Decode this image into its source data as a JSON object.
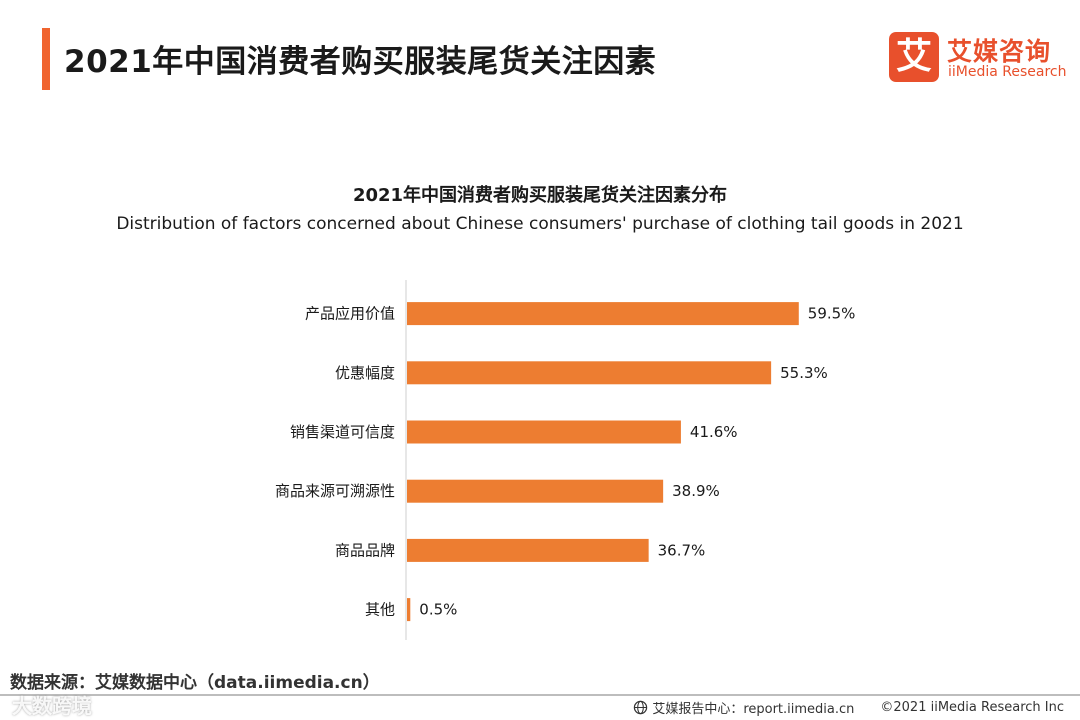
{
  "header": {
    "title": "2021年中国消费者购买服装尾货关注因素",
    "logo_cn": "艾媒咨询",
    "logo_en": "iiMedia Research",
    "logo_mark": "艾"
  },
  "chart_data": {
    "type": "bar",
    "orientation": "horizontal",
    "title": "2021年中国消费者购买服装尾货关注因素分布",
    "subtitle": "Distribution of factors concerned about Chinese consumers' purchase of clothing tail goods in 2021",
    "categories": [
      "产品应用价值",
      "优惠幅度",
      "销售渠道可信度",
      "商品来源可溯源性",
      "商品品牌",
      "其他"
    ],
    "values": [
      59.5,
      55.3,
      41.6,
      38.9,
      36.7,
      0.5
    ],
    "labels": [
      "59.5%",
      "55.3%",
      "41.6%",
      "38.9%",
      "36.7%",
      "0.5%"
    ],
    "unit": "%",
    "xlim": [
      0,
      65
    ],
    "grid": false,
    "legend": "none",
    "bar_color": "#ed7d31"
  },
  "footer": {
    "source": "数据来源：艾媒数据中心（data.iimedia.cn）",
    "report_center": "艾媒报告中心：report.iimedia.cn",
    "copyright": "©2021  iiMedia Research  Inc",
    "watermark": "大数跨境"
  },
  "colors": {
    "accent": "#f0642f",
    "brand": "#e8502c",
    "bar": "#ed7d31"
  }
}
